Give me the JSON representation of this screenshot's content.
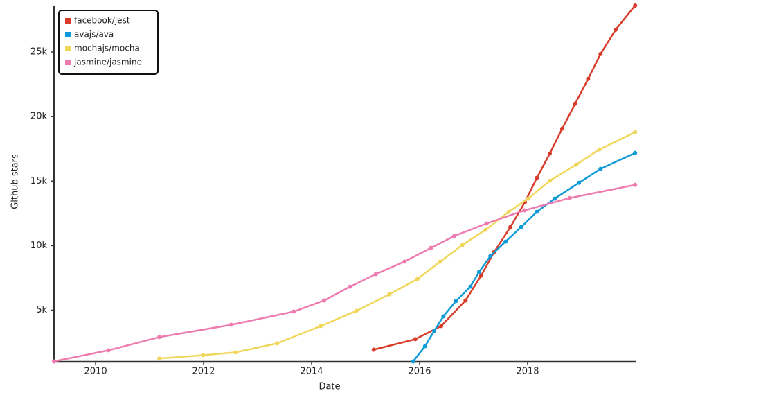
{
  "chart_data": {
    "type": "line",
    "x_label": "Date",
    "y_label": "Github stars",
    "xlim": [
      2009.23,
      2020.0
    ],
    "xticks": [
      2010,
      2012,
      2014,
      2016,
      2018
    ],
    "ylim": [
      1000,
      28600
    ],
    "yticks": [
      {
        "value": 5000,
        "label": "5k"
      },
      {
        "value": 10000,
        "label": "10k"
      },
      {
        "value": 15000,
        "label": "15k"
      },
      {
        "value": 20000,
        "label": "20k"
      },
      {
        "value": 25000,
        "label": "25k"
      }
    ],
    "grid": false,
    "legend": "upper left",
    "series": [
      {
        "name": "facebook/jest",
        "color": "#d93b2b",
        "x": [
          2015.15,
          2015.92,
          2016.4,
          2016.85,
          2017.14,
          2017.38,
          2017.68,
          2017.95,
          2018.17,
          2018.41,
          2018.64,
          2018.88,
          2019.12,
          2019.35,
          2019.63,
          2019.99
        ],
        "values": [
          1940,
          2750,
          3770,
          5750,
          7680,
          9510,
          11440,
          13370,
          15250,
          17130,
          19060,
          20990,
          22920,
          24850,
          26730,
          28600
        ]
      },
      {
        "name": "avajs/ava",
        "color": "#0e9ad6",
        "x": [
          2015.88,
          2016.1,
          2016.27,
          2016.44,
          2016.67,
          2016.94,
          2017.1,
          2017.31,
          2017.59,
          2017.88,
          2018.17,
          2018.5,
          2018.95,
          2019.35,
          2019.99
        ],
        "values": [
          1030,
          2210,
          3390,
          4520,
          5700,
          6820,
          7950,
          9190,
          10310,
          11440,
          12620,
          13640,
          14870,
          15950,
          17180
        ]
      },
      {
        "name": "mochajs/mocha",
        "color": "#f0d75a",
        "x": [
          2011.18,
          2011.99,
          2012.59,
          2013.36,
          2014.17,
          2014.83,
          2015.44,
          2015.96,
          2016.38,
          2016.79,
          2017.22,
          2017.65,
          2018.01,
          2018.41,
          2018.9,
          2019.33,
          2019.99
        ],
        "values": [
          1250,
          1510,
          1730,
          2430,
          3770,
          4950,
          6230,
          7410,
          8760,
          10040,
          11220,
          12620,
          13640,
          15030,
          16270,
          17450,
          18790
        ]
      },
      {
        "name": "jasmine/jasmine",
        "color": "#ee7bb0",
        "x": [
          2009.23,
          2010.24,
          2011.18,
          2012.51,
          2013.67,
          2014.23,
          2014.71,
          2015.19,
          2015.72,
          2016.21,
          2016.64,
          2017.24,
          2017.94,
          2018.78,
          2019.99
        ],
        "values": [
          1030,
          1890,
          2910,
          3870,
          4890,
          5750,
          6820,
          7790,
          8760,
          9830,
          10740,
          11710,
          12730,
          13690,
          14710
        ]
      }
    ]
  }
}
